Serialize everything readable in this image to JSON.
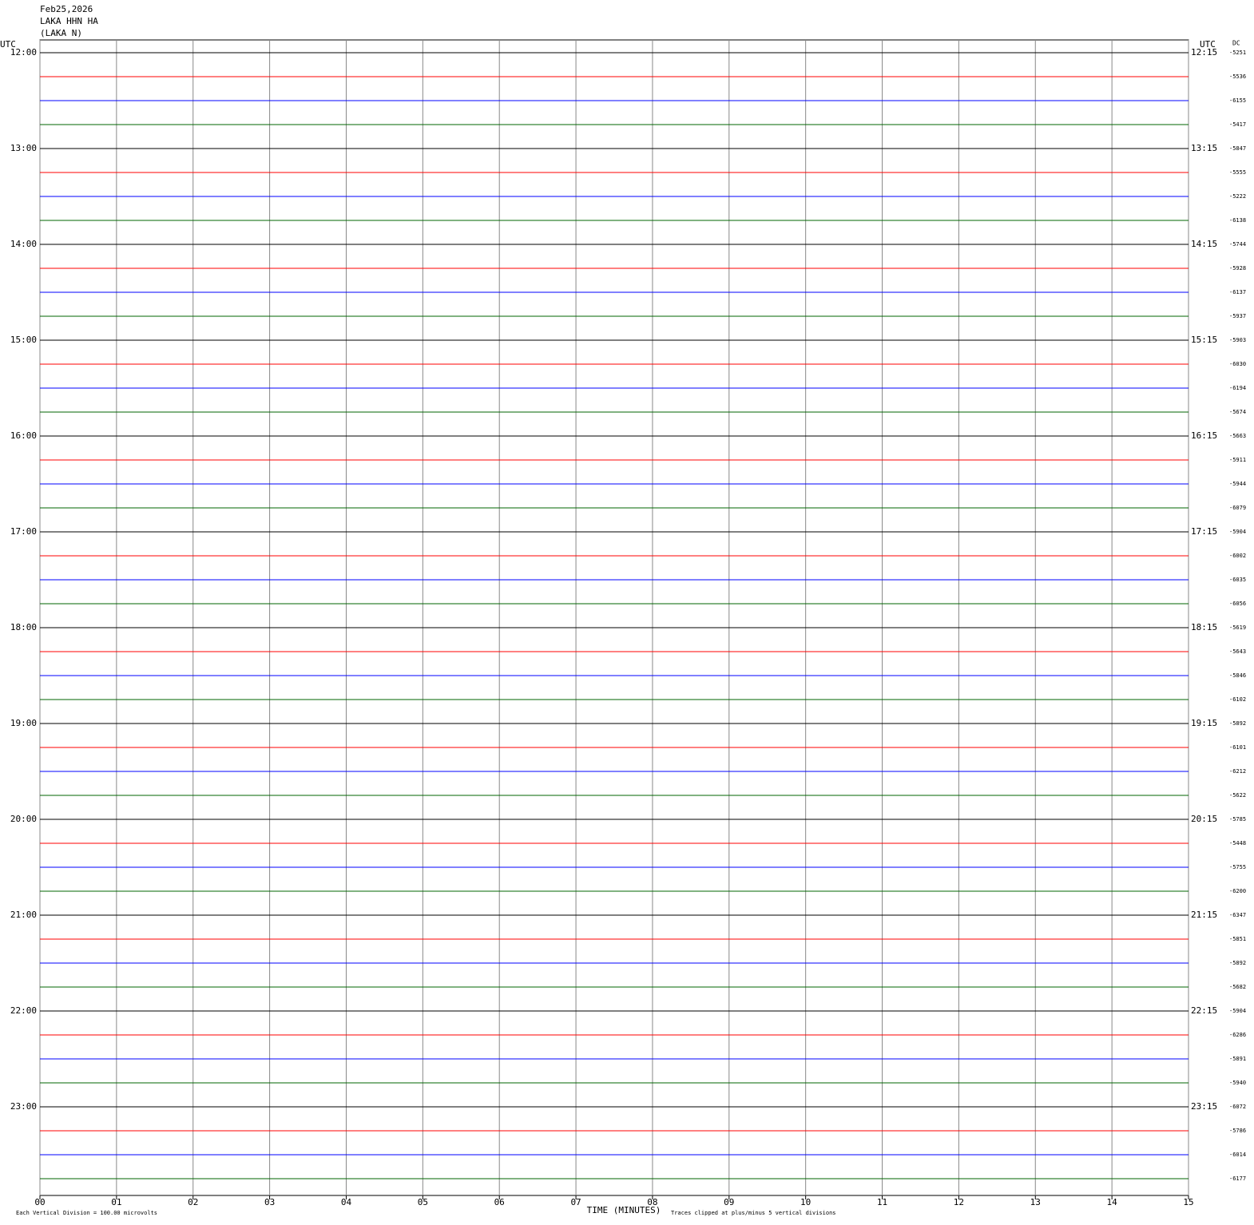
{
  "chart_data": {
    "type": "helicorder",
    "title_lines": [
      "Feb25,2026",
      "LAKA HHN HA",
      "(LAKA N)"
    ],
    "left_axis_title": "UTC",
    "right_axis_title": "UTC",
    "dc_title": "DC",
    "xlabel": "TIME (MINUTES)",
    "scale_note": "Each Vertical Division =  100.00 microvolts",
    "clip_note": "Traces clipped at plus/minus 5 vertical divisions",
    "xlim": [
      0,
      15
    ],
    "xticks": [
      {
        "value": 0,
        "label": "00"
      },
      {
        "value": 1,
        "label": "01"
      },
      {
        "value": 2,
        "label": "02"
      },
      {
        "value": 3,
        "label": "03"
      },
      {
        "value": 4,
        "label": "04"
      },
      {
        "value": 5,
        "label": "05"
      },
      {
        "value": 6,
        "label": "06"
      },
      {
        "value": 7,
        "label": "07"
      },
      {
        "value": 8,
        "label": "08"
      },
      {
        "value": 9,
        "label": "09"
      },
      {
        "value": 10,
        "label": "10"
      },
      {
        "value": 11,
        "label": "11"
      },
      {
        "value": 12,
        "label": "12"
      },
      {
        "value": 13,
        "label": "13"
      },
      {
        "value": 14,
        "label": "14"
      },
      {
        "value": 15,
        "label": "15"
      }
    ],
    "grid": true,
    "trace_colors": [
      "#000000",
      "#ff0000",
      "#0000ff",
      "#006400"
    ],
    "left_labels": [
      "12:00",
      "13:00",
      "14:00",
      "15:00",
      "16:00",
      "17:00",
      "18:00",
      "19:00",
      "20:00",
      "21:00",
      "22:00",
      "23:00"
    ],
    "right_labels": [
      "12:15",
      "13:15",
      "14:15",
      "15:15",
      "16:15",
      "17:15",
      "18:15",
      "19:15",
      "20:15",
      "21:15",
      "22:15",
      "23:15"
    ],
    "dc_values": [
      -5251,
      -5536,
      -6155,
      -5417,
      -5847,
      -5555,
      -5222,
      -6138,
      -5744,
      -5928,
      -6137,
      -5937,
      -5903,
      -6030,
      -6194,
      -5674,
      -5663,
      -5911,
      -5944,
      -6079,
      -5904,
      -6002,
      -6035,
      -6056,
      -5619,
      -5643,
      -5846,
      -6102,
      -5892,
      -6101,
      -6212,
      -5622,
      -5785,
      -5448,
      -5755,
      -6200,
      -6347,
      -5851,
      -5892,
      -5682,
      -5904,
      -6286,
      -5891,
      -5940,
      -6072,
      -5786,
      -6014,
      -6177
    ]
  }
}
